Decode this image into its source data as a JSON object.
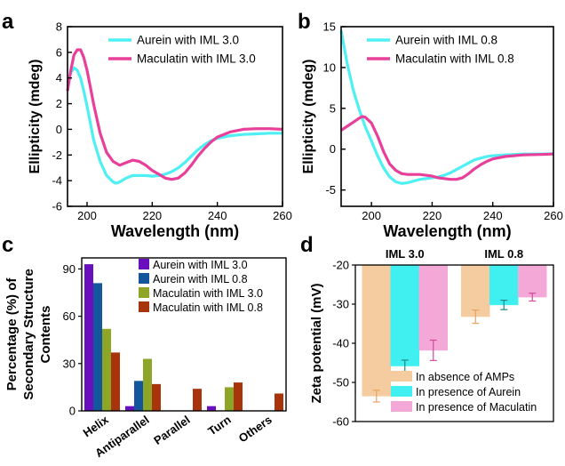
{
  "chart_data": [
    {
      "panel": "a",
      "type": "line",
      "xlabel": "Wavelength (nm)",
      "ylabel": "Ellipticity (mdeg)",
      "xlim": [
        194,
        260
      ],
      "ylim": [
        -6,
        8
      ],
      "xticks": [
        200,
        220,
        240,
        260
      ],
      "yticks": [
        -6,
        -4,
        -2,
        0,
        2,
        4,
        6,
        8
      ],
      "legend_position": "top-right",
      "series": [
        {
          "name": "Aurein with IML 3.0",
          "color": "#4ef0f4",
          "points": [
            [
              194,
              3.6
            ],
            [
              195,
              4.4
            ],
            [
              196,
              4.8
            ],
            [
              197,
              4.6
            ],
            [
              198,
              4.0
            ],
            [
              199,
              3.0
            ],
            [
              200,
              1.8
            ],
            [
              201,
              0.5
            ],
            [
              202,
              -0.8
            ],
            [
              204,
              -2.5
            ],
            [
              206,
              -3.6
            ],
            [
              208,
              -4.1
            ],
            [
              209,
              -4.2
            ],
            [
              210,
              -4.1
            ],
            [
              212,
              -3.8
            ],
            [
              214,
              -3.6
            ],
            [
              216,
              -3.6
            ],
            [
              218,
              -3.6
            ],
            [
              220,
              -3.65
            ],
            [
              222,
              -3.6
            ],
            [
              224,
              -3.5
            ],
            [
              226,
              -3.3
            ],
            [
              228,
              -3.0
            ],
            [
              230,
              -2.6
            ],
            [
              232,
              -2.1
            ],
            [
              234,
              -1.6
            ],
            [
              236,
              -1.2
            ],
            [
              238,
              -0.9
            ],
            [
              240,
              -0.7
            ],
            [
              244,
              -0.5
            ],
            [
              248,
              -0.4
            ],
            [
              252,
              -0.35
            ],
            [
              256,
              -0.3
            ],
            [
              260,
              -0.3
            ]
          ]
        },
        {
          "name": "Maculatin with IML 3.0",
          "color": "#e8409a",
          "points": [
            [
              194,
              3.0
            ],
            [
              195,
              4.6
            ],
            [
              196,
              5.8
            ],
            [
              197,
              6.2
            ],
            [
              198,
              6.2
            ],
            [
              199,
              5.6
            ],
            [
              200,
              4.6
            ],
            [
              201,
              3.3
            ],
            [
              202,
              2.0
            ],
            [
              204,
              -0.3
            ],
            [
              206,
              -1.8
            ],
            [
              208,
              -2.5
            ],
            [
              210,
              -2.8
            ],
            [
              212,
              -2.6
            ],
            [
              214,
              -2.4
            ],
            [
              216,
              -2.5
            ],
            [
              218,
              -2.8
            ],
            [
              220,
              -3.2
            ],
            [
              222,
              -3.5
            ],
            [
              224,
              -3.8
            ],
            [
              226,
              -3.9
            ],
            [
              228,
              -3.8
            ],
            [
              230,
              -3.4
            ],
            [
              232,
              -2.8
            ],
            [
              234,
              -2.1
            ],
            [
              236,
              -1.5
            ],
            [
              238,
              -1.0
            ],
            [
              240,
              -0.6
            ],
            [
              244,
              -0.2
            ],
            [
              248,
              0.0
            ],
            [
              252,
              0.05
            ],
            [
              256,
              0.05
            ],
            [
              260,
              0.0
            ]
          ]
        }
      ]
    },
    {
      "panel": "b",
      "type": "line",
      "xlabel": "Wavelength (nm)",
      "ylabel": "Ellipticity (mdeg)",
      "xlim": [
        190,
        260
      ],
      "ylim": [
        -7,
        15
      ],
      "xticks": [
        200,
        220,
        240,
        260
      ],
      "yticks": [
        -5,
        0,
        5,
        10,
        15
      ],
      "legend_position": "top-right",
      "series": [
        {
          "name": "Aurein with IML 0.8",
          "color": "#4ef0f4",
          "points": [
            [
              190,
              14.5
            ],
            [
              191,
              12.5
            ],
            [
              192,
              10.5
            ],
            [
              194,
              7.2
            ],
            [
              196,
              4.8
            ],
            [
              198,
              2.7
            ],
            [
              200,
              1.0
            ],
            [
              202,
              -0.8
            ],
            [
              204,
              -2.3
            ],
            [
              206,
              -3.4
            ],
            [
              208,
              -4.0
            ],
            [
              210,
              -4.2
            ],
            [
              212,
              -4.1
            ],
            [
              214,
              -3.9
            ],
            [
              216,
              -3.7
            ],
            [
              218,
              -3.6
            ],
            [
              220,
              -3.5
            ],
            [
              222,
              -3.4
            ],
            [
              224,
              -3.2
            ],
            [
              226,
              -2.9
            ],
            [
              228,
              -2.5
            ],
            [
              230,
              -2.1
            ],
            [
              232,
              -1.7
            ],
            [
              234,
              -1.3
            ],
            [
              236,
              -1.1
            ],
            [
              238,
              -0.9
            ],
            [
              240,
              -0.8
            ],
            [
              244,
              -0.7
            ],
            [
              250,
              -0.6
            ],
            [
              256,
              -0.6
            ],
            [
              260,
              -0.55
            ]
          ]
        },
        {
          "name": "Maculatin with IML 0.8",
          "color": "#e8409a",
          "points": [
            [
              190,
              2.3
            ],
            [
              192,
              2.8
            ],
            [
              194,
              3.3
            ],
            [
              196,
              3.8
            ],
            [
              197,
              4.0
            ],
            [
              198,
              3.9
            ],
            [
              200,
              3.2
            ],
            [
              202,
              1.6
            ],
            [
              204,
              -0.3
            ],
            [
              206,
              -1.8
            ],
            [
              208,
              -2.6
            ],
            [
              210,
              -3.0
            ],
            [
              212,
              -3.1
            ],
            [
              214,
              -3.1
            ],
            [
              216,
              -3.1
            ],
            [
              218,
              -3.2
            ],
            [
              220,
              -3.3
            ],
            [
              222,
              -3.5
            ],
            [
              224,
              -3.6
            ],
            [
              226,
              -3.7
            ],
            [
              228,
              -3.7
            ],
            [
              230,
              -3.5
            ],
            [
              232,
              -3.0
            ],
            [
              234,
              -2.4
            ],
            [
              236,
              -1.9
            ],
            [
              238,
              -1.5
            ],
            [
              240,
              -1.2
            ],
            [
              244,
              -0.9
            ],
            [
              250,
              -0.7
            ],
            [
              256,
              -0.65
            ],
            [
              260,
              -0.6
            ]
          ]
        }
      ]
    },
    {
      "panel": "c",
      "type": "bar",
      "ylabel": "Percentage (%) of Secondary Structure Contents",
      "ylabel_lines": [
        "Percentage (%) of",
        "Secondary Structure",
        "Contents"
      ],
      "categories": [
        "Helix",
        "Antiparallel",
        "Parallel",
        "Turn",
        "Others"
      ],
      "ylim": [
        0,
        97
      ],
      "yticks": [
        0,
        30,
        60,
        90
      ],
      "legend_position": "top-right",
      "series": [
        {
          "name": "Aurein with IML 3.0",
          "color": "#6a0fbd",
          "values": [
            93,
            3,
            0,
            3,
            0
          ]
        },
        {
          "name": "Aurein with IML 0.8",
          "color": "#14569c",
          "values": [
            81,
            19,
            0,
            0,
            0
          ]
        },
        {
          "name": "Maculatin with IML 3.0",
          "color": "#8ea627",
          "values": [
            52,
            33,
            0,
            15,
            0
          ]
        },
        {
          "name": "Maculatin with IML 0.8",
          "color": "#a8340b",
          "values": [
            37,
            17,
            14,
            18,
            11
          ]
        }
      ]
    },
    {
      "panel": "d",
      "type": "bar",
      "ylabel": "Zeta potential (mV)",
      "categories": [
        "IML 3.0",
        "IML 0.8"
      ],
      "ylim": [
        -60,
        -20
      ],
      "yticks": [
        -60,
        -50,
        -40,
        -30,
        -20
      ],
      "legend_position": "bottom-right",
      "series": [
        {
          "name": "In absence of AMPs",
          "color": "#f5cca0",
          "error_color": "#e8a360",
          "values": [
            -53.5,
            -33.2
          ],
          "errors": [
            1.5,
            1.7
          ]
        },
        {
          "name": "In presence of Aurein",
          "color": "#40f0f0",
          "error_color": "#1a8a8a",
          "values": [
            -45.8,
            -30.2
          ],
          "errors": [
            1.5,
            1.2
          ]
        },
        {
          "name": "In presence of Maculatin",
          "color": "#f4a8d8",
          "error_color": "#d04c9a",
          "values": [
            -41.8,
            -28.2
          ],
          "errors": [
            2.6,
            1.0
          ]
        }
      ]
    }
  ]
}
